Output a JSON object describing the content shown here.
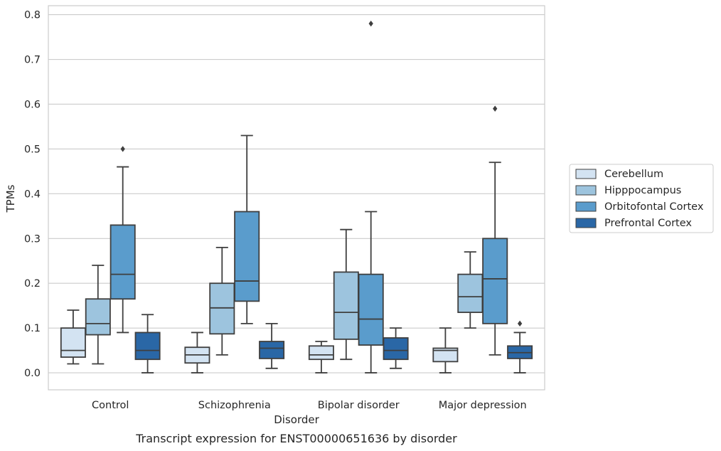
{
  "chart_data": {
    "type": "box",
    "title": "",
    "caption": "Transcript expression for ENST00000651636 by disorder",
    "xlabel": "Disorder",
    "ylabel": "TPMs",
    "ylim": [
      -0.038,
      0.82
    ],
    "yticks": [
      0.0,
      0.1,
      0.2,
      0.3,
      0.4,
      0.5,
      0.6,
      0.7,
      0.8
    ],
    "ytick_labels": [
      "0.0",
      "0.1",
      "0.2",
      "0.3",
      "0.4",
      "0.5",
      "0.6",
      "0.7",
      "0.8"
    ],
    "grid": true,
    "legend_position": "right",
    "categories": [
      "Control",
      "Schizophrenia",
      "Bipolar disorder",
      "Major depression"
    ],
    "series": [
      {
        "name": "Cerebellum",
        "color": "#d3e3f2",
        "boxes": [
          {
            "whisker_low": 0.02,
            "q1": 0.035,
            "median": 0.05,
            "q3": 0.1,
            "whisker_high": 0.14,
            "outliers": []
          },
          {
            "whisker_low": 0.0,
            "q1": 0.022,
            "median": 0.04,
            "q3": 0.057,
            "whisker_high": 0.09,
            "outliers": []
          },
          {
            "whisker_low": 0.0,
            "q1": 0.03,
            "median": 0.04,
            "q3": 0.06,
            "whisker_high": 0.07,
            "outliers": []
          },
          {
            "whisker_low": 0.0,
            "q1": 0.025,
            "median": 0.05,
            "q3": 0.055,
            "whisker_high": 0.1,
            "outliers": []
          }
        ]
      },
      {
        "name": "Hipppocampus",
        "color": "#9dc4de",
        "boxes": [
          {
            "whisker_low": 0.02,
            "q1": 0.085,
            "median": 0.11,
            "q3": 0.165,
            "whisker_high": 0.24,
            "outliers": []
          },
          {
            "whisker_low": 0.04,
            "q1": 0.087,
            "median": 0.145,
            "q3": 0.2,
            "whisker_high": 0.28,
            "outliers": []
          },
          {
            "whisker_low": 0.03,
            "q1": 0.075,
            "median": 0.135,
            "q3": 0.225,
            "whisker_high": 0.32,
            "outliers": []
          },
          {
            "whisker_low": 0.1,
            "q1": 0.135,
            "median": 0.17,
            "q3": 0.22,
            "whisker_high": 0.27,
            "outliers": []
          }
        ]
      },
      {
        "name": "Orbitofontal Cortex",
        "color": "#5a9ccc",
        "boxes": [
          {
            "whisker_low": 0.09,
            "q1": 0.165,
            "median": 0.22,
            "q3": 0.33,
            "whisker_high": 0.46,
            "outliers": [
              0.5
            ]
          },
          {
            "whisker_low": 0.11,
            "q1": 0.16,
            "median": 0.205,
            "q3": 0.36,
            "whisker_high": 0.53,
            "outliers": []
          },
          {
            "whisker_low": 0.0,
            "q1": 0.062,
            "median": 0.12,
            "q3": 0.22,
            "whisker_high": 0.36,
            "outliers": [
              0.78
            ]
          },
          {
            "whisker_low": 0.04,
            "q1": 0.11,
            "median": 0.21,
            "q3": 0.3,
            "whisker_high": 0.47,
            "outliers": [
              0.59
            ]
          }
        ]
      },
      {
        "name": "Prefrontal Cortex",
        "color": "#2a67a6",
        "boxes": [
          {
            "whisker_low": 0.0,
            "q1": 0.03,
            "median": 0.05,
            "q3": 0.09,
            "whisker_high": 0.13,
            "outliers": []
          },
          {
            "whisker_low": 0.01,
            "q1": 0.032,
            "median": 0.055,
            "q3": 0.07,
            "whisker_high": 0.11,
            "outliers": []
          },
          {
            "whisker_low": 0.01,
            "q1": 0.03,
            "median": 0.05,
            "q3": 0.078,
            "whisker_high": 0.1,
            "outliers": []
          },
          {
            "whisker_low": 0.0,
            "q1": 0.032,
            "median": 0.045,
            "q3": 0.06,
            "whisker_high": 0.09,
            "outliers": [
              0.11
            ]
          }
        ]
      }
    ]
  }
}
